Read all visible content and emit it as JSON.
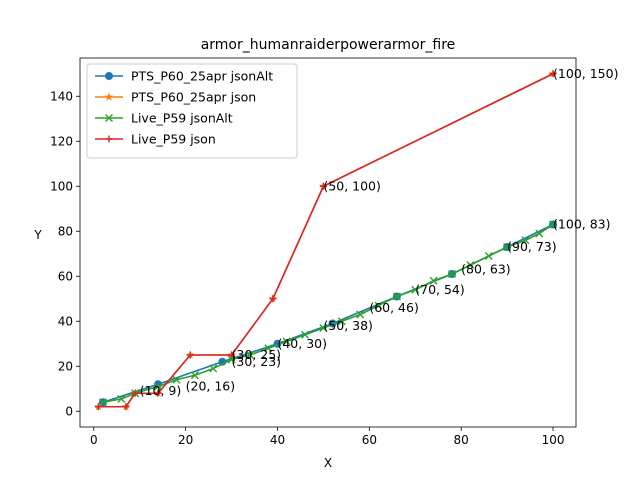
{
  "chart_data": {
    "type": "line",
    "title": "armor_humanraiderpowerarmor_fire",
    "xlabel": "X",
    "ylabel": "Y",
    "xlim": [
      -3,
      105
    ],
    "ylim": [
      -7,
      157
    ],
    "xticks": [
      0,
      20,
      40,
      60,
      80,
      100
    ],
    "yticks": [
      0,
      20,
      40,
      60,
      80,
      100,
      120,
      140
    ],
    "grid": false,
    "legend_position": "top-left",
    "series": [
      {
        "name": "PTS_P60_25apr jsonAlt",
        "color": "#1f77b4",
        "marker": "circle",
        "x": [
          2,
          14,
          28,
          40,
          52,
          66,
          78,
          90,
          100
        ],
        "y": [
          4,
          12,
          22,
          30,
          39,
          51,
          61,
          73,
          83
        ]
      },
      {
        "name": "PTS_P60_25apr json",
        "color": "#ff7f0e",
        "marker": "star",
        "x": [
          1,
          7,
          9,
          14,
          21,
          30,
          39,
          50,
          100
        ],
        "y": [
          2,
          2,
          8,
          8,
          25,
          25,
          50,
          100,
          150
        ]
      },
      {
        "name": "Live_P59 jsonAlt",
        "color": "#2ca02c",
        "marker": "x",
        "x": [
          2,
          6,
          9,
          14,
          18,
          22,
          26,
          30,
          34,
          38,
          42,
          46,
          50,
          54,
          58,
          62,
          66,
          70,
          74,
          78,
          82,
          86,
          90,
          94,
          97,
          100
        ],
        "y": [
          4,
          5.5,
          8,
          11,
          14,
          16,
          19,
          23,
          25,
          28,
          31,
          34,
          37,
          40,
          43,
          47,
          51,
          54,
          58,
          61,
          65,
          69,
          73,
          76,
          79,
          83
        ]
      },
      {
        "name": "Live_P59 json",
        "color": "#d62728",
        "marker": "plus",
        "x": [
          1,
          7,
          9,
          14,
          21,
          30,
          39,
          50,
          100
        ],
        "y": [
          2,
          2,
          8,
          8,
          25,
          25,
          50,
          100,
          150
        ]
      }
    ],
    "annotations": [
      {
        "text": "(10, 9)",
        "x": 10,
        "y": 9
      },
      {
        "text": "(20, 16)",
        "x": 20,
        "y": 11
      },
      {
        "text": "(30, 25)",
        "x": 30,
        "y": 25
      },
      {
        "text": "(30, 23)",
        "x": 30,
        "y": 22
      },
      {
        "text": "(40, 30)",
        "x": 40,
        "y": 30
      },
      {
        "text": "(50, 38)",
        "x": 50,
        "y": 38
      },
      {
        "text": "(60, 46)",
        "x": 60,
        "y": 46
      },
      {
        "text": "(70, 54)",
        "x": 70,
        "y": 54
      },
      {
        "text": "(80, 63)",
        "x": 80,
        "y": 63
      },
      {
        "text": "(90, 73)",
        "x": 90,
        "y": 73
      },
      {
        "text": "(100, 83)",
        "x": 100,
        "y": 83
      },
      {
        "text": "(50, 100)",
        "x": 50,
        "y": 100
      },
      {
        "text": "(100, 150)",
        "x": 100,
        "y": 150
      }
    ]
  }
}
